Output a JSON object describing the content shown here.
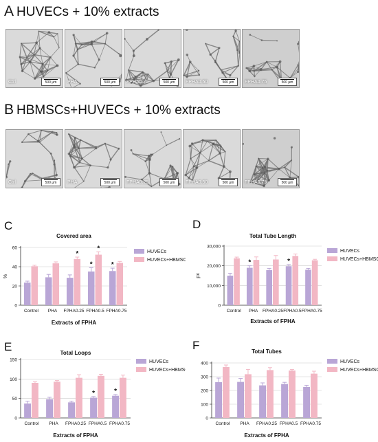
{
  "panel_a": {
    "letter": "A",
    "title": "HUVECs + 10% extracts",
    "images": [
      {
        "label": "Ctrl",
        "scale": "500 μm"
      },
      {
        "label": "PHA",
        "scale": "500 μm"
      },
      {
        "label": "FPHA0.25",
        "scale": "500 μm"
      },
      {
        "label": "FPHA0.50",
        "scale": "500 μm"
      },
      {
        "label": "FPHA0.75",
        "scale": "500 μm"
      }
    ]
  },
  "panel_b": {
    "letter": "B",
    "title": "HBMSCs+HUVECs + 10% extracts",
    "images": [
      {
        "label": "Ctrl",
        "scale": "500 μm"
      },
      {
        "label": "PHA",
        "scale": "500 μm"
      },
      {
        "label": "FPHA0.25",
        "scale": "500 μm"
      },
      {
        "label": "FPHA0.50",
        "scale": "500 μm"
      },
      {
        "label": "FPHA0.75",
        "scale": "500 μm"
      }
    ]
  },
  "colors": {
    "huvec": "#b9a6d6",
    "cocult": "#f2b7c4",
    "grid": "#cccccc"
  },
  "chart_data": [
    {
      "id": "C",
      "type": "bar",
      "letter": "C",
      "title": "Covered area",
      "xlabel": "Extracts of FPHA",
      "ylabel": "%",
      "ylim": [
        0,
        60
      ],
      "yticks": [
        0,
        20,
        40,
        60
      ],
      "categories": [
        "Control",
        "PHA",
        "FPHA0.25",
        "FPHA0.5",
        "FPHA0.75"
      ],
      "series": [
        {
          "name": "HUVECs",
          "values": [
            23.5,
            29,
            28.5,
            35,
            35.5
          ],
          "errors": [
            1.5,
            3,
            3,
            4,
            3
          ]
        },
        {
          "name": "HUVECs+HBMSCs",
          "values": [
            40.5,
            43.5,
            48,
            52.5,
            44
          ],
          "errors": [
            1,
            1.5,
            2,
            3,
            1.5
          ]
        }
      ],
      "stars": [
        [],
        [],
        [
          "HUVECs+HBMSCs"
        ],
        [
          "HUVECs",
          "HUVECs+HBMSCs"
        ],
        [
          "HUVECs"
        ]
      ],
      "star": "*"
    },
    {
      "id": "D",
      "type": "bar",
      "letter": "D",
      "title": "Total Tube Length",
      "xlabel": "Extracts of FPHA",
      "ylabel": "px",
      "ylim": [
        0,
        30000
      ],
      "yticks": [
        0,
        10000,
        20000,
        30000
      ],
      "ytick_labels": [
        "0",
        "10,000",
        "20,000",
        "30,000"
      ],
      "categories": [
        "Control",
        "PHA",
        "FPHA0.25",
        "FPHA0.5",
        "FPHA0.75"
      ],
      "series": [
        {
          "name": "HUVECs",
          "values": [
            15000,
            19000,
            17800,
            19800,
            18000
          ],
          "errors": [
            1200,
            1000,
            900,
            800,
            700
          ]
        },
        {
          "name": "HUVECs+HBMSCs",
          "values": [
            23800,
            23000,
            23200,
            25000,
            22800
          ],
          "errors": [
            600,
            1500,
            2000,
            1000,
            500
          ]
        }
      ],
      "stars": [
        [],
        [
          "HUVECs"
        ],
        [],
        [
          "HUVECs"
        ],
        []
      ],
      "star": "*"
    },
    {
      "id": "E",
      "type": "bar",
      "letter": "E",
      "title": "Total Loops",
      "xlabel": "Extracts of FPHA",
      "ylabel": "",
      "ylim": [
        0,
        150
      ],
      "yticks": [
        0,
        50,
        100,
        150
      ],
      "categories": [
        "Control",
        "PHA",
        "FPHA0.25",
        "FPHA0.5",
        "FPHA0.75"
      ],
      "series": [
        {
          "name": "HUVECs",
          "values": [
            37,
            48,
            40,
            52,
            57
          ],
          "errors": [
            6,
            5,
            3,
            3,
            3
          ]
        },
        {
          "name": "HUVECs+HBMSCs",
          "values": [
            90,
            93,
            103,
            108,
            103
          ],
          "errors": [
            3,
            3,
            8,
            4,
            7
          ]
        }
      ],
      "stars": [
        [],
        [],
        [],
        [
          "HUVECs"
        ],
        [
          "HUVECs"
        ]
      ],
      "star": "*"
    },
    {
      "id": "F",
      "type": "bar",
      "letter": "F",
      "title": "Total Tubes",
      "xlabel": "Extracts of FPHA",
      "ylabel": "",
      "ylim": [
        0,
        400
      ],
      "yticks": [
        0,
        100,
        200,
        300,
        400
      ],
      "categories": [
        "Control",
        "PHA",
        "FPHA0.25",
        "FPHA0.5",
        "FPHA0.75"
      ],
      "series": [
        {
          "name": "HUVECs",
          "values": [
            260,
            262,
            237,
            247,
            225
          ],
          "errors": [
            30,
            25,
            18,
            12,
            12
          ]
        },
        {
          "name": "HUVECs+HBMSCs",
          "values": [
            370,
            318,
            348,
            345,
            322
          ],
          "errors": [
            15,
            35,
            18,
            8,
            18
          ]
        }
      ],
      "stars": [
        [],
        [],
        [],
        [],
        []
      ],
      "star": "*"
    }
  ]
}
